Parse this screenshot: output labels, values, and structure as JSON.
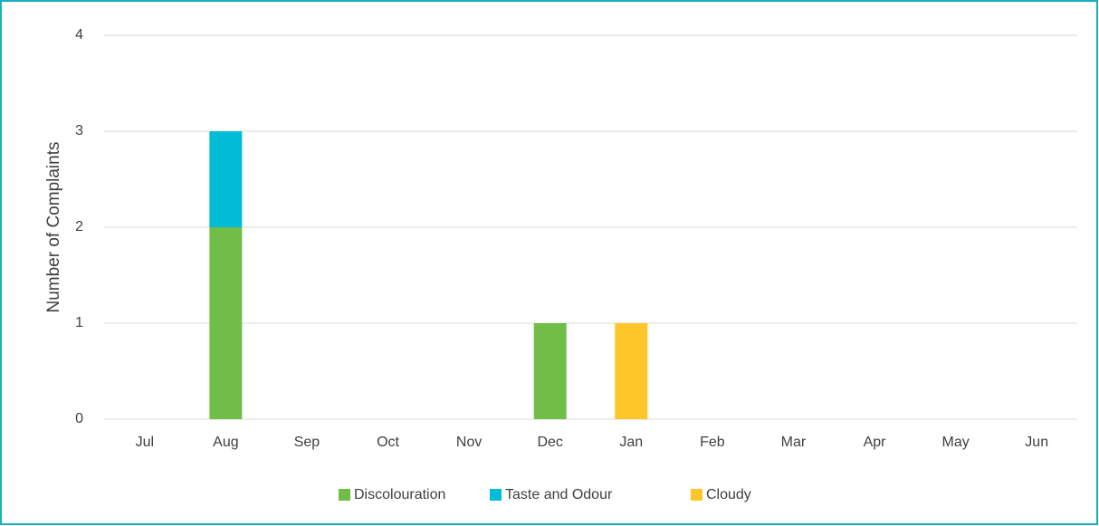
{
  "chart_data": {
    "type": "stacked_bar",
    "categories": [
      "Jul",
      "Aug",
      "Sep",
      "Oct",
      "Nov",
      "Dec",
      "Jan",
      "Feb",
      "Mar",
      "Apr",
      "May",
      "Jun"
    ],
    "series": [
      {
        "name": "Discolouration",
        "color": "#70bd48",
        "values": [
          0,
          2,
          0,
          0,
          0,
          1,
          0,
          0,
          0,
          0,
          0,
          0
        ]
      },
      {
        "name": "Taste and Odour",
        "color": "#00bcd6",
        "values": [
          0,
          1,
          0,
          0,
          0,
          0,
          0,
          0,
          0,
          0,
          0,
          0
        ]
      },
      {
        "name": "Cloudy",
        "color": "#ffc629",
        "values": [
          0,
          0,
          0,
          0,
          0,
          0,
          1,
          0,
          0,
          0,
          0,
          0
        ]
      }
    ],
    "y_label": "Number of Complaints",
    "ylim": [
      0,
      4
    ],
    "yticks": [
      0,
      1,
      2,
      3,
      4
    ],
    "grid": true,
    "legend": "bottom"
  }
}
